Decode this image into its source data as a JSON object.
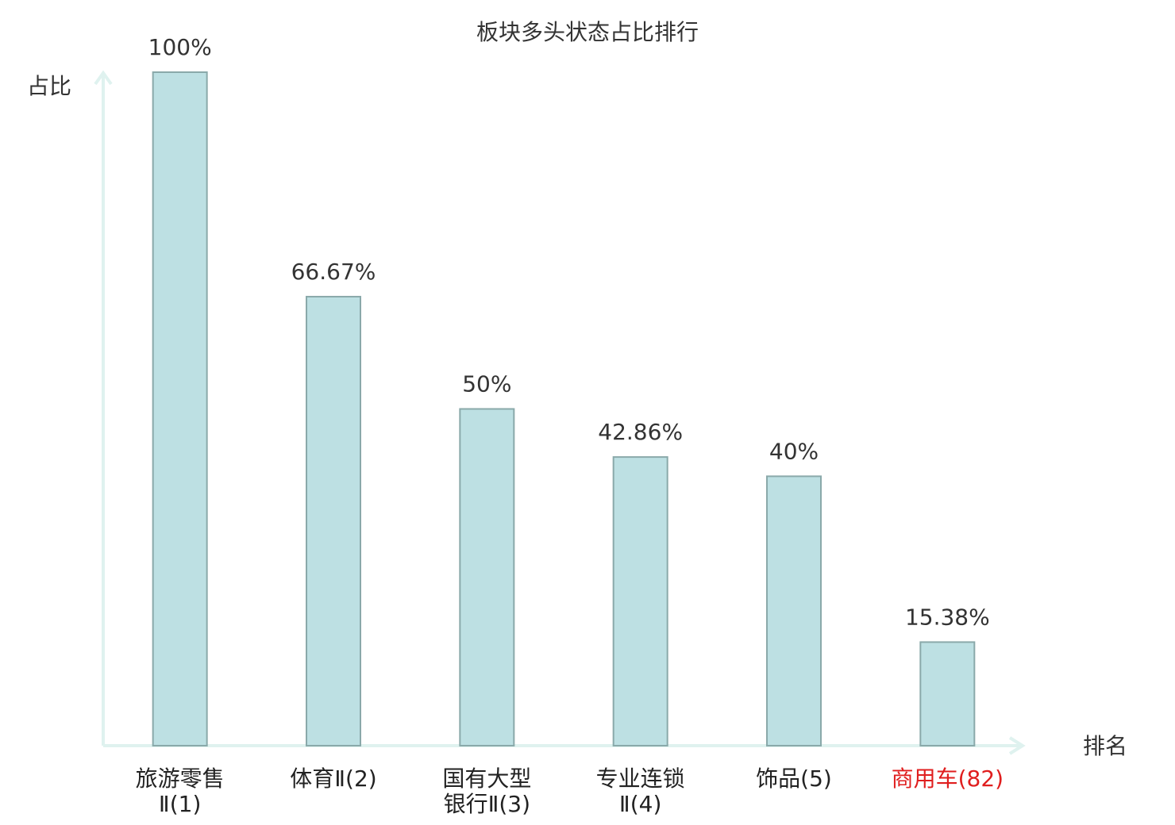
{
  "chart_data": {
    "type": "bar",
    "title": "板块多头状态占比排行",
    "y_label": "占比",
    "x_label": "排名",
    "categories": [
      "旅游零售\nⅡ(1)",
      "体育Ⅱ(2)",
      "国有大型\n银行Ⅱ(3)",
      "专业连锁\nⅡ(4)",
      "饰品(5)",
      "商用车(82)"
    ],
    "values": [
      100,
      66.67,
      50,
      42.86,
      40,
      15.38
    ],
    "value_labels": [
      "100%",
      "66.67%",
      "50%",
      "42.86%",
      "40%",
      "15.38%"
    ],
    "color": "#bde0e3",
    "edge_color": "#8aa9aa",
    "category_label_colors": [
      "#222222",
      "#222222",
      "#222222",
      "#222222",
      "#222222",
      "#e01e1e"
    ],
    "ylim": [
      0,
      100
    ],
    "grid": false
  }
}
